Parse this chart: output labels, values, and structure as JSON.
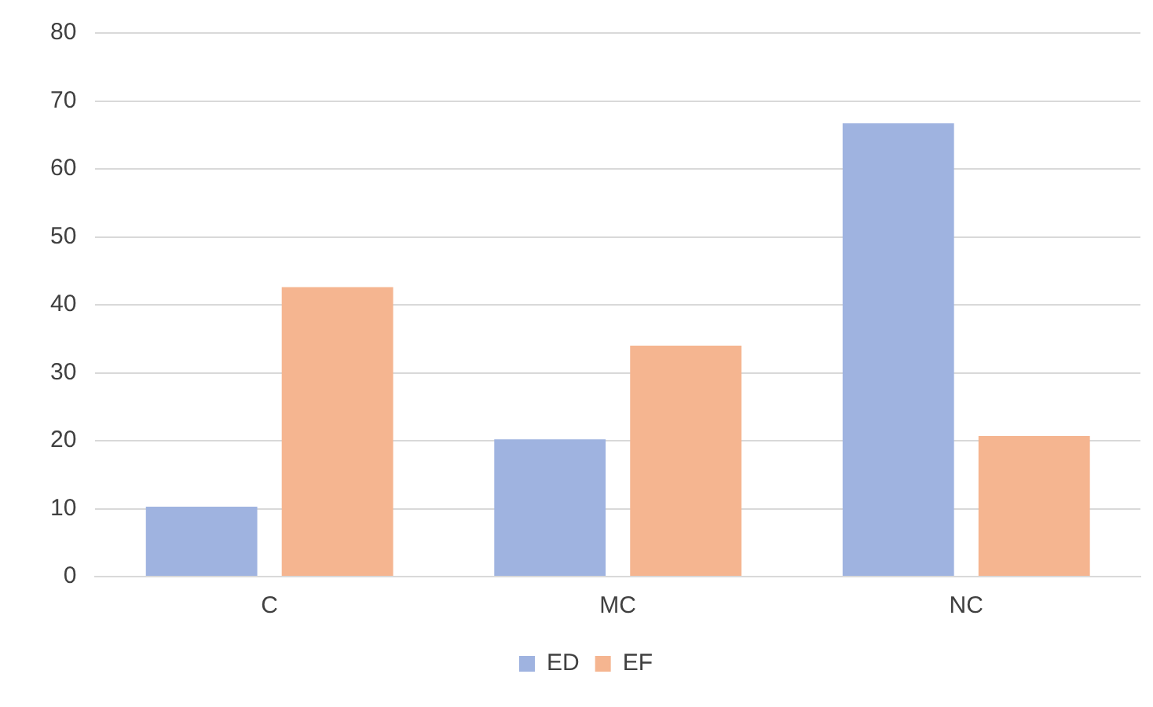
{
  "chart_data": {
    "type": "bar",
    "categories": [
      "C",
      "MC",
      "NC"
    ],
    "series": [
      {
        "name": "ED",
        "color": "#9fb3e0",
        "values": [
          10.3,
          20.2,
          66.7
        ]
      },
      {
        "name": "EF",
        "color": "#f5b590",
        "values": [
          42.6,
          34,
          20.7
        ]
      }
    ],
    "ylim": [
      0,
      80
    ],
    "yticks": [
      0,
      10,
      20,
      30,
      40,
      50,
      60,
      70,
      80
    ],
    "grid": "y",
    "legend": "bottom"
  }
}
